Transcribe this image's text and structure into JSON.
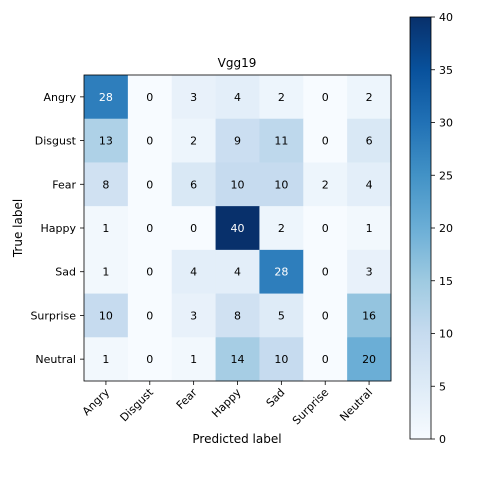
{
  "chart_data": {
    "type": "heatmap",
    "title": "Vgg19",
    "xlabel": "Predicted label",
    "ylabel": "True label",
    "row_labels": [
      "Angry",
      "Disgust",
      "Fear",
      "Happy",
      "Sad",
      "Surprise",
      "Neutral"
    ],
    "col_labels": [
      "Angry",
      "Disgust",
      "Fear",
      "Happy",
      "Sad",
      "Surprise",
      "Neutral"
    ],
    "values": [
      [
        28,
        0,
        3,
        4,
        2,
        0,
        2
      ],
      [
        13,
        0,
        2,
        9,
        11,
        0,
        6
      ],
      [
        8,
        0,
        6,
        10,
        10,
        2,
        4
      ],
      [
        1,
        0,
        0,
        40,
        2,
        0,
        1
      ],
      [
        1,
        0,
        4,
        4,
        28,
        0,
        3
      ],
      [
        10,
        0,
        3,
        8,
        5,
        0,
        16
      ],
      [
        1,
        0,
        1,
        14,
        10,
        0,
        20
      ]
    ],
    "colormap": "Blues",
    "vmin": 0,
    "vmax": 40,
    "colorbar_ticks": [
      0,
      5,
      10,
      15,
      20,
      25,
      30,
      35,
      40
    ],
    "colorbar_position": "right",
    "grid": false
  }
}
